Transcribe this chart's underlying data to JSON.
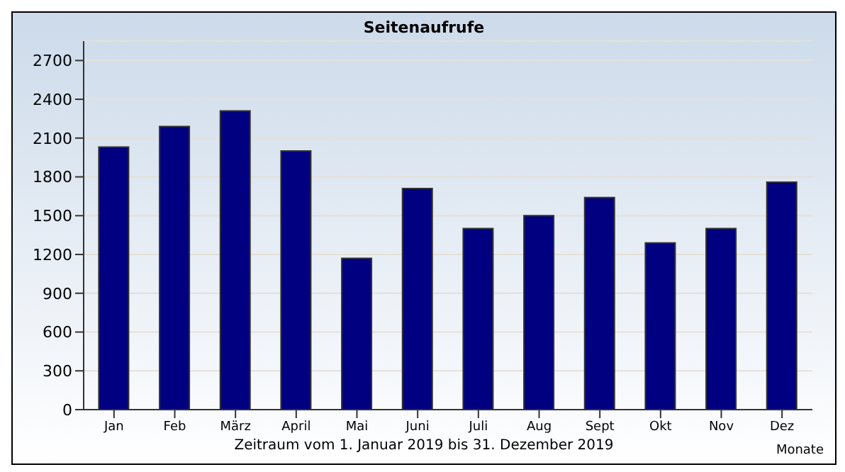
{
  "chart_data": {
    "type": "bar",
    "title": "Seitenaufrufe",
    "xlabel": "Zeitraum vom 1. Januar 2019 bis 31. Dezember 2019",
    "annotations": [
      "Monate"
    ],
    "categories": [
      "Jan",
      "Feb",
      "März",
      "April",
      "Mai",
      "Juni",
      "Juli",
      "Aug",
      "Sept",
      "Okt",
      "Nov",
      "Dez"
    ],
    "values": [
      2030,
      2190,
      2310,
      2000,
      1170,
      1710,
      1400,
      1500,
      1640,
      1290,
      1400,
      1760
    ],
    "color": "#000080",
    "ylim": [
      0,
      2850
    ],
    "yticks": [
      0,
      300,
      600,
      900,
      1200,
      1500,
      1800,
      2100,
      2400,
      2700
    ],
    "grid": "y",
    "legend": false
  }
}
